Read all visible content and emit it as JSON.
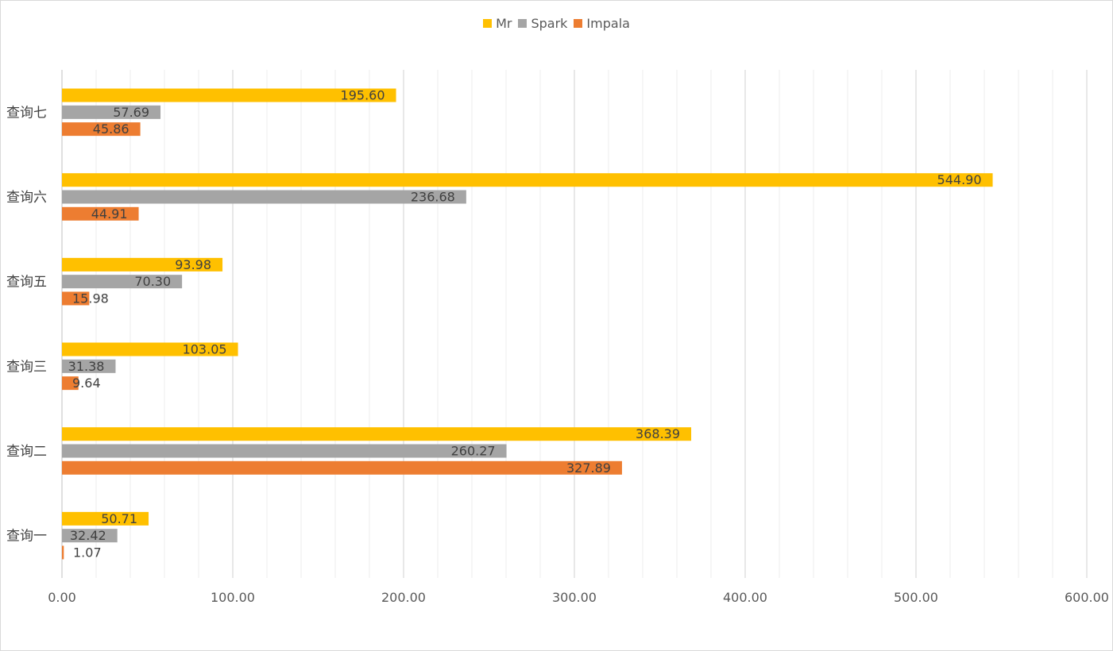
{
  "chart_data": {
    "type": "bar",
    "orientation": "horizontal",
    "title": "",
    "xlabel": "",
    "ylabel": "",
    "xlim": [
      0,
      600
    ],
    "x_ticks": [
      "0.00",
      "100.00",
      "200.00",
      "300.00",
      "400.00",
      "500.00",
      "600.00"
    ],
    "grid": "major and minor vertical",
    "legend_position": "top-center",
    "categories": [
      "查询一",
      "查询二",
      "查询三",
      "查询五",
      "查询六",
      "查询七"
    ],
    "series": [
      {
        "name": "Mr",
        "color": "#FFC000",
        "values": [
          50.71,
          368.39,
          103.05,
          93.98,
          544.9,
          195.6
        ],
        "labels": [
          "50.71",
          "368.39",
          "103.05",
          "93.98",
          "544.90",
          "195.60"
        ]
      },
      {
        "name": "Spark",
        "color": "#A5A5A5",
        "values": [
          32.42,
          260.27,
          31.38,
          70.3,
          236.68,
          57.69
        ],
        "labels": [
          "32.42",
          "260.27",
          "31.38",
          "70.30",
          "236.68",
          "57.69"
        ]
      },
      {
        "name": "Impala",
        "color": "#ED7D31",
        "values": [
          1.07,
          327.89,
          9.64,
          15.98,
          44.91,
          45.86
        ],
        "labels": [
          "1.07",
          "327.89",
          "9.64",
          "15.98",
          "44.91",
          "45.86"
        ]
      }
    ]
  }
}
